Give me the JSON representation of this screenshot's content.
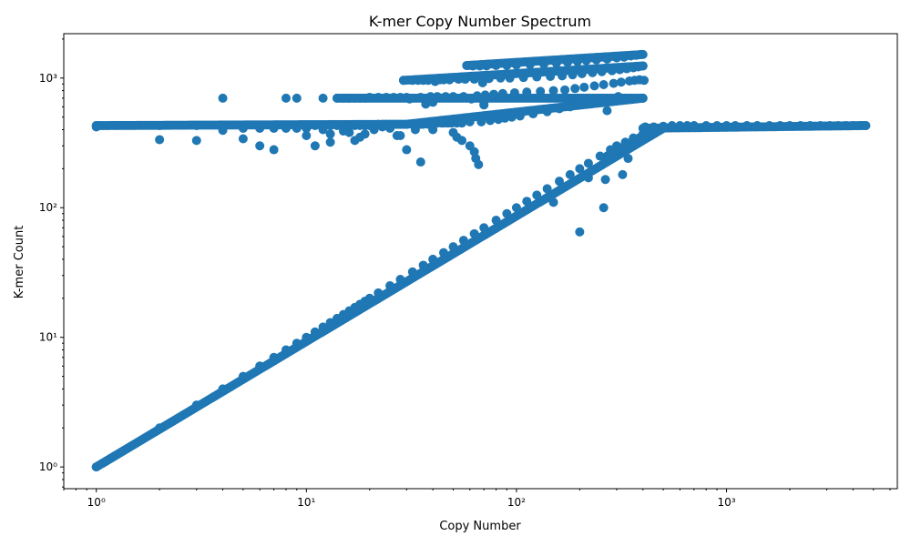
{
  "chart_data": {
    "type": "scatter",
    "title": "K-mer Copy Number Spectrum",
    "xlabel": "Copy Number",
    "ylabel": "K-mer Count",
    "xscale": "log",
    "yscale": "log",
    "xlim": [
      0.7,
      6500
    ],
    "ylim": [
      0.68,
      2200
    ],
    "grid": false,
    "legend": "none",
    "marker_color": "#1f77b4",
    "x_ticks": [
      {
        "value": 1,
        "label": "10⁰"
      },
      {
        "value": 10,
        "label": "10¹"
      },
      {
        "value": 100,
        "label": "10²"
      },
      {
        "value": 1000,
        "label": "10³"
      }
    ],
    "y_ticks": [
      {
        "value": 1,
        "label": "10⁰"
      },
      {
        "value": 10,
        "label": "10¹"
      },
      {
        "value": 100,
        "label": "10²"
      },
      {
        "value": 1000,
        "label": "10³"
      }
    ],
    "series": [
      {
        "points": [
          [
            1,
            1
          ],
          [
            2,
            2
          ],
          [
            3,
            3
          ],
          [
            4,
            4
          ],
          [
            5,
            5
          ],
          [
            6,
            6
          ],
          [
            7,
            7
          ],
          [
            8,
            8
          ],
          [
            9,
            9
          ],
          [
            10,
            10
          ],
          [
            11,
            11
          ],
          [
            12,
            12
          ],
          [
            13,
            13
          ],
          [
            14,
            14
          ],
          [
            15,
            15
          ],
          [
            16,
            16
          ],
          [
            17,
            17
          ],
          [
            18,
            18
          ],
          [
            19,
            19
          ],
          [
            20,
            20
          ],
          [
            22,
            22
          ],
          [
            25,
            25
          ],
          [
            28,
            28
          ],
          [
            32,
            32
          ],
          [
            36,
            36
          ],
          [
            40,
            40
          ],
          [
            45,
            45
          ],
          [
            50,
            50
          ],
          [
            56,
            56
          ],
          [
            63,
            63
          ],
          [
            70,
            70
          ],
          [
            80,
            80
          ],
          [
            90,
            90
          ],
          [
            100,
            100
          ],
          [
            112,
            112
          ],
          [
            125,
            125
          ],
          [
            140,
            140
          ],
          [
            160,
            160
          ],
          [
            180,
            180
          ],
          [
            200,
            200
          ],
          [
            220,
            220
          ],
          [
            250,
            250
          ],
          [
            280,
            280
          ],
          [
            300,
            300
          ],
          [
            330,
            320
          ],
          [
            360,
            345
          ],
          [
            400,
            370
          ],
          [
            450,
            395
          ],
          [
            500,
            410
          ],
          [
            1,
            430
          ],
          [
            1,
            420
          ],
          [
            2,
            430
          ],
          [
            2,
            335
          ],
          [
            3,
            430
          ],
          [
            3,
            330
          ],
          [
            4,
            430
          ],
          [
            4,
            395
          ],
          [
            4,
            700
          ],
          [
            5,
            430
          ],
          [
            5,
            410
          ],
          [
            5,
            340
          ],
          [
            6,
            430
          ],
          [
            6,
            410
          ],
          [
            6,
            300
          ],
          [
            7,
            430
          ],
          [
            7,
            410
          ],
          [
            7,
            280
          ],
          [
            8,
            430
          ],
          [
            8,
            410
          ],
          [
            8,
            700
          ],
          [
            9,
            430
          ],
          [
            9,
            410
          ],
          [
            9,
            700
          ],
          [
            10,
            430
          ],
          [
            10,
            410
          ],
          [
            10,
            360
          ],
          [
            11,
            430
          ],
          [
            11,
            300
          ],
          [
            12,
            430
          ],
          [
            12,
            400
          ],
          [
            12,
            700
          ],
          [
            13,
            430
          ],
          [
            13,
            370
          ],
          [
            13,
            320
          ],
          [
            14,
            430
          ],
          [
            14,
            700
          ],
          [
            15,
            430
          ],
          [
            15,
            390
          ],
          [
            15,
            700
          ],
          [
            16,
            430
          ],
          [
            16,
            380
          ],
          [
            16,
            700
          ],
          [
            17,
            430
          ],
          [
            17,
            330
          ],
          [
            17,
            700
          ],
          [
            18,
            430
          ],
          [
            18,
            350
          ],
          [
            18,
            700
          ],
          [
            19,
            430
          ],
          [
            19,
            370
          ],
          [
            19,
            700
          ],
          [
            20,
            430
          ],
          [
            20,
            710
          ],
          [
            21,
            430
          ],
          [
            21,
            400
          ],
          [
            22,
            440
          ],
          [
            22,
            710
          ],
          [
            23,
            440
          ],
          [
            23,
            420
          ],
          [
            24,
            440
          ],
          [
            24,
            710
          ],
          [
            25,
            440
          ],
          [
            25,
            410
          ],
          [
            26,
            440
          ],
          [
            26,
            710
          ],
          [
            27,
            440
          ],
          [
            27,
            360
          ],
          [
            28,
            440
          ],
          [
            28,
            360
          ],
          [
            28,
            710
          ],
          [
            29,
            440
          ],
          [
            29,
            960
          ],
          [
            30,
            280
          ],
          [
            30,
            440
          ],
          [
            30,
            710
          ],
          [
            31,
            690
          ],
          [
            32,
            440
          ],
          [
            32,
            960
          ],
          [
            33,
            440
          ],
          [
            33,
            400
          ],
          [
            34,
            960
          ],
          [
            35,
            440
          ],
          [
            35,
            710
          ],
          [
            35,
            225
          ],
          [
            36,
            440
          ],
          [
            36,
            960
          ],
          [
            37,
            630
          ],
          [
            38,
            440
          ],
          [
            38,
            960
          ],
          [
            39,
            720
          ],
          [
            40,
            650
          ],
          [
            40,
            450
          ],
          [
            40,
            400
          ],
          [
            41,
            940
          ],
          [
            42,
            450
          ],
          [
            42,
            720
          ],
          [
            43,
            970
          ],
          [
            44,
            450
          ],
          [
            45,
            450
          ],
          [
            45,
            970
          ],
          [
            46,
            720
          ],
          [
            47,
            450
          ],
          [
            48,
            970
          ],
          [
            49,
            450
          ],
          [
            50,
            380
          ],
          [
            50,
            720
          ],
          [
            52,
            350
          ],
          [
            52,
            450
          ],
          [
            53,
            980
          ],
          [
            55,
            450
          ],
          [
            55,
            330
          ],
          [
            56,
            720
          ],
          [
            57,
            980
          ],
          [
            58,
            1250
          ],
          [
            60,
            300
          ],
          [
            60,
            460
          ],
          [
            61,
            690
          ],
          [
            62,
            1240
          ],
          [
            63,
            270
          ],
          [
            63,
            980
          ],
          [
            64,
            240
          ],
          [
            65,
            730
          ],
          [
            66,
            215
          ],
          [
            67,
            1240
          ],
          [
            68,
            460
          ],
          [
            69,
            920
          ],
          [
            70,
            630
          ],
          [
            70,
            620
          ],
          [
            71,
            740
          ],
          [
            72,
            1240
          ],
          [
            74,
            990
          ],
          [
            75,
            470
          ],
          [
            78,
            750
          ],
          [
            80,
            1250
          ],
          [
            82,
            480
          ],
          [
            84,
            1000
          ],
          [
            86,
            760
          ],
          [
            88,
            490
          ],
          [
            90,
            1250
          ],
          [
            93,
            1000
          ],
          [
            95,
            500
          ],
          [
            98,
            770
          ],
          [
            100,
            1260
          ],
          [
            104,
            510
          ],
          [
            108,
            1010
          ],
          [
            112,
            780
          ],
          [
            116,
            1270
          ],
          [
            120,
            530
          ],
          [
            125,
            1020
          ],
          [
            130,
            790
          ],
          [
            135,
            1280
          ],
          [
            140,
            550
          ],
          [
            145,
            1030
          ],
          [
            150,
            110
          ],
          [
            150,
            800
          ],
          [
            155,
            1300
          ],
          [
            160,
            580
          ],
          [
            165,
            1040
          ],
          [
            170,
            810
          ],
          [
            175,
            1320
          ],
          [
            180,
            600
          ],
          [
            185,
            1060
          ],
          [
            190,
            830
          ],
          [
            195,
            1340
          ],
          [
            200,
            65
          ],
          [
            200,
            620
          ],
          [
            205,
            1080
          ],
          [
            210,
            850
          ],
          [
            215,
            1360
          ],
          [
            220,
            170
          ],
          [
            225,
            650
          ],
          [
            230,
            1100
          ],
          [
            235,
            870
          ],
          [
            240,
            1380
          ],
          [
            250,
            680
          ],
          [
            255,
            1120
          ],
          [
            260,
            100
          ],
          [
            260,
            890
          ],
          [
            265,
            165
          ],
          [
            270,
            560
          ],
          [
            270,
            1400
          ],
          [
            280,
            700
          ],
          [
            285,
            1140
          ],
          [
            290,
            910
          ],
          [
            300,
            1430
          ],
          [
            305,
            720
          ],
          [
            310,
            1160
          ],
          [
            315,
            930
          ],
          [
            320,
            180
          ],
          [
            325,
            1450
          ],
          [
            330,
            700
          ],
          [
            335,
            1180
          ],
          [
            340,
            240
          ],
          [
            345,
            950
          ],
          [
            350,
            1480
          ],
          [
            355,
            700
          ],
          [
            360,
            1200
          ],
          [
            365,
            960
          ],
          [
            370,
            1500
          ],
          [
            375,
            700
          ],
          [
            380,
            1220
          ],
          [
            385,
            970
          ],
          [
            390,
            1520
          ],
          [
            395,
            700
          ],
          [
            400,
            1240
          ],
          [
            405,
            960
          ],
          [
            410,
            420
          ],
          [
            450,
            420
          ],
          [
            500,
            425
          ],
          [
            550,
            430
          ],
          [
            600,
            430
          ],
          [
            650,
            430
          ],
          [
            700,
            430
          ],
          [
            800,
            430
          ],
          [
            900,
            430
          ],
          [
            1000,
            430
          ],
          [
            1100,
            430
          ],
          [
            1250,
            430
          ],
          [
            1400,
            430
          ],
          [
            1600,
            430
          ],
          [
            1800,
            430
          ],
          [
            2000,
            430
          ],
          [
            2250,
            430
          ],
          [
            2500,
            430
          ],
          [
            2800,
            430
          ],
          [
            3100,
            430
          ],
          [
            3400,
            430
          ],
          [
            3700,
            430
          ],
          [
            4000,
            430
          ],
          [
            4300,
            430
          ],
          [
            4600,
            430
          ]
        ],
        "segments": [
          {
            "x_from": 1,
            "x_to": 500,
            "y_from": 1,
            "y_to": 410
          },
          {
            "x_from": 1,
            "x_to": 30,
            "y_from": 430,
            "y_to": 440
          },
          {
            "x_from": 30,
            "x_to": 400,
            "y_from": 440,
            "y_to": 700
          },
          {
            "x_from": 14,
            "x_to": 400,
            "y_from": 700,
            "y_to": 700
          },
          {
            "x_from": 29,
            "x_to": 400,
            "y_from": 960,
            "y_to": 1240
          },
          {
            "x_from": 58,
            "x_to": 400,
            "y_from": 1250,
            "y_to": 1520
          },
          {
            "x_from": 270,
            "x_to": 450,
            "y_from": 250,
            "y_to": 400
          },
          {
            "x_from": 400,
            "x_to": 4600,
            "y_from": 410,
            "y_to": 430
          }
        ]
      }
    ]
  }
}
